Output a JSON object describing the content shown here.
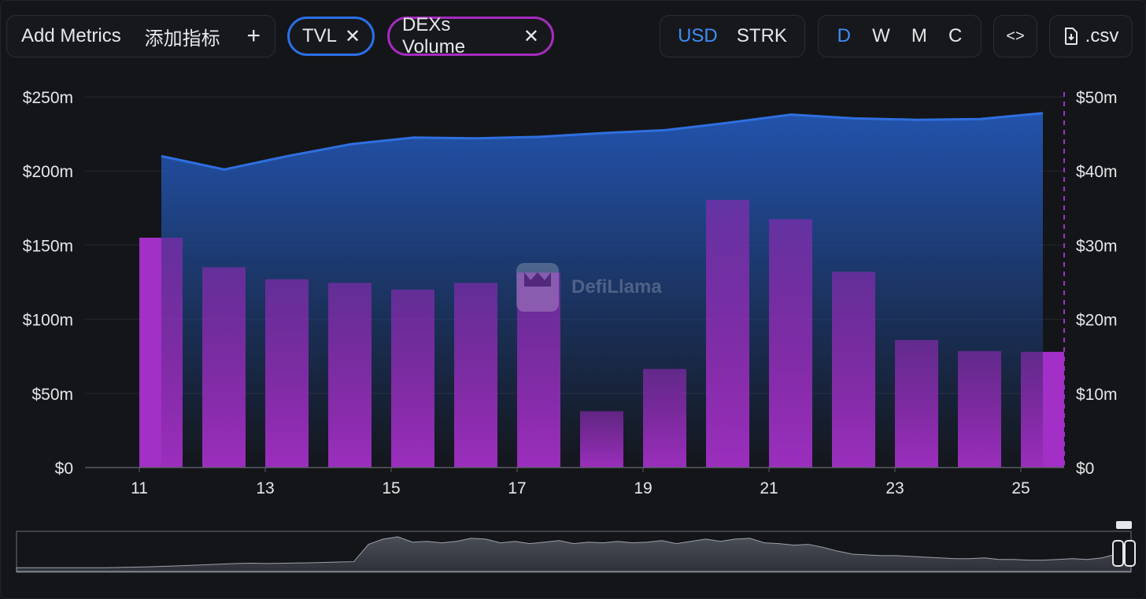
{
  "toolbar": {
    "add_metrics_label": "Add Metrics",
    "add_metrics_cn": "添加指标",
    "add_icon": "plus-icon",
    "chips": [
      {
        "label": "TVL",
        "color": "#2b6fe8"
      },
      {
        "label": "DEXs Volume",
        "color": "#a52cbe"
      }
    ],
    "currency_options": [
      "USD",
      "STRK"
    ],
    "currency_selected": "USD",
    "period_options": [
      "D",
      "W",
      "M",
      "C"
    ],
    "period_selected": "D",
    "embed_label": "<>",
    "csv_label": ".csv",
    "csv_icon": "file-download-icon"
  },
  "watermark": "DefiLlama",
  "colors": {
    "tvl_line": "#2f6fe0",
    "tvl_fill_top": "#2356b4",
    "volume_bar": "#8f2ab5",
    "volume_bar_highlight": "#a230c6",
    "accent": "#3d8ef7",
    "background": "#141518"
  },
  "chart_data": {
    "type": "bar",
    "x": [
      11,
      12,
      13,
      14,
      15,
      16,
      17,
      18,
      19,
      20,
      21,
      22,
      23,
      24,
      25
    ],
    "x_tick_labels": [
      "11",
      "13",
      "15",
      "17",
      "19",
      "21",
      "23",
      "25"
    ],
    "series": [
      {
        "name": "TVL",
        "type": "area",
        "axis": "left",
        "x": [
          11.35,
          12.35,
          13.35,
          14.35,
          15.35,
          16.35,
          17.35,
          18.35,
          19.35,
          20.35,
          21.35,
          22.35,
          23.35,
          24.35,
          25.35
        ],
        "values": [
          210,
          201,
          210,
          218,
          222.5,
          222,
          223,
          225.5,
          227.5,
          232.5,
          238,
          235.5,
          234.5,
          235,
          239
        ]
      },
      {
        "name": "DEXs Volume",
        "type": "bar",
        "axis": "right",
        "values": [
          31,
          27,
          25.4,
          24.9,
          24,
          24.9,
          26.3,
          7.6,
          13.3,
          36.1,
          33.5,
          26.4,
          17.2,
          15.7,
          15.6
        ]
      }
    ],
    "y_left": {
      "min": 0,
      "max": 250,
      "ticks": [
        "$0",
        "$50m",
        "$100m",
        "$150m",
        "$200m",
        "$250m"
      ]
    },
    "y_right": {
      "min": 0,
      "max": 50,
      "ticks": [
        "$0",
        "$10m",
        "$20m",
        "$30m",
        "$40m",
        "$50m"
      ]
    },
    "grid": true,
    "overview": {
      "type": "area",
      "values": [
        5,
        5,
        5,
        5,
        5,
        5,
        5,
        5.4,
        5.8,
        6.2,
        6.8,
        7.4,
        8.2,
        9,
        9.8,
        10.6,
        11,
        10.6,
        10.9,
        11.2,
        11.5,
        12,
        12.5,
        13,
        36,
        43,
        46,
        39,
        40,
        38,
        40,
        44,
        43,
        38,
        40,
        37,
        39,
        41,
        37,
        39,
        38,
        40,
        38,
        39,
        41,
        37,
        40,
        43,
        40,
        43,
        44,
        38,
        37,
        35,
        36,
        32,
        27,
        23,
        22,
        21,
        21,
        20,
        19,
        18,
        17,
        17,
        18,
        16,
        16,
        15,
        15,
        16,
        17,
        16,
        18,
        23,
        32
      ]
    }
  }
}
